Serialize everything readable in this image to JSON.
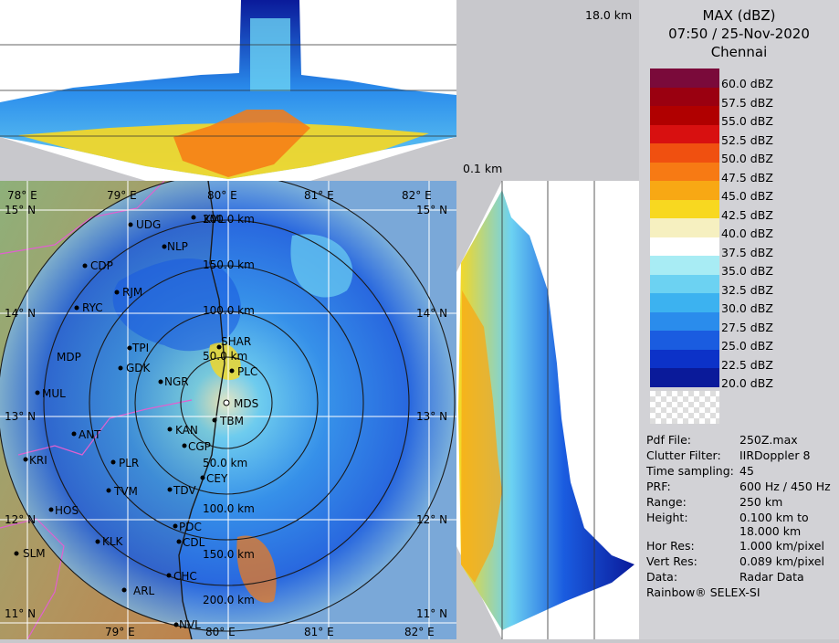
{
  "header": {
    "product": "MAX (dBZ)",
    "datetime": "07:50 / 25-Nov-2020",
    "station": "Chennai"
  },
  "profile": {
    "top_height": "18.0 km",
    "bottom_height": "0.1 km"
  },
  "colorbar": [
    {
      "label": "60.0 dBZ",
      "color": "#7a0a3a"
    },
    {
      "label": "57.5 dBZ",
      "color": "#9a0010"
    },
    {
      "label": "55.0 dBZ",
      "color": "#b00000"
    },
    {
      "label": "52.5 dBZ",
      "color": "#d81010"
    },
    {
      "label": "50.0 dBZ",
      "color": "#f05010"
    },
    {
      "label": "47.5 dBZ",
      "color": "#f77a14"
    },
    {
      "label": "45.0 dBZ",
      "color": "#f8a814"
    },
    {
      "label": "42.5 dBZ",
      "color": "#f8d820"
    },
    {
      "label": "40.0 dBZ",
      "color": "#f6f0c0"
    },
    {
      "label": "37.5 dBZ",
      "color": "#ffffff"
    },
    {
      "label": "35.0 dBZ",
      "color": "#a8ecf4"
    },
    {
      "label": "32.5 dBZ",
      "color": "#6cd2f2"
    },
    {
      "label": "30.0 dBZ",
      "color": "#3cb2f0"
    },
    {
      "label": "27.5 dBZ",
      "color": "#2a8cec"
    },
    {
      "label": "25.0 dBZ",
      "color": "#1a5ce0"
    },
    {
      "label": "22.5 dBZ",
      "color": "#0c32c8"
    },
    {
      "label": "20.0 dBZ",
      "color": "#0a1a9a"
    }
  ],
  "info": [
    {
      "label": "Pdf File:",
      "value": "250Z.max"
    },
    {
      "label": "Clutter Filter:",
      "value": "IIRDoppler 8"
    },
    {
      "label": "Time sampling:",
      "value": "45"
    },
    {
      "label": "PRF:",
      "value": "600 Hz / 450 Hz"
    },
    {
      "label": "Range:",
      "value": "250 km"
    },
    {
      "label": "Height:",
      "value": "0.100 km to 18.000 km"
    },
    {
      "label": "Hor Res:",
      "value": "1.000 km/pixel"
    },
    {
      "label": "Vert Res:",
      "value": "0.089 km/pixel"
    },
    {
      "label": "Data:",
      "value": "Radar Data"
    }
  ],
  "brand": "Rainbow® SELEX-SI",
  "map": {
    "lon_labels": [
      "78° E",
      "79° E",
      "80° E",
      "81° E",
      "82° E"
    ],
    "lat_labels": [
      "15° N",
      "14° N",
      "13° N",
      "12° N",
      "11° N"
    ],
    "range_rings": [
      "50.0 km",
      "100.0 km",
      "150.0 km",
      "200.0 km"
    ],
    "places": [
      {
        "name": "UDG"
      },
      {
        "name": "NLP"
      },
      {
        "name": "CDP"
      },
      {
        "name": "RJM"
      },
      {
        "name": "RYC"
      },
      {
        "name": "SHAR"
      },
      {
        "name": "TPI"
      },
      {
        "name": "MDP"
      },
      {
        "name": "GDK"
      },
      {
        "name": "NGR"
      },
      {
        "name": "PLC"
      },
      {
        "name": "MUL"
      },
      {
        "name": "MDS"
      },
      {
        "name": "TBM"
      },
      {
        "name": "KAN"
      },
      {
        "name": "ANT"
      },
      {
        "name": "CGP"
      },
      {
        "name": "KRI"
      },
      {
        "name": "PLR"
      },
      {
        "name": "CEY"
      },
      {
        "name": "TVM"
      },
      {
        "name": "TDV"
      },
      {
        "name": "HOS"
      },
      {
        "name": "PDC"
      },
      {
        "name": "SLM"
      },
      {
        "name": "KLK"
      },
      {
        "name": "CDL"
      },
      {
        "name": "CHC"
      },
      {
        "name": "ARL"
      },
      {
        "name": "NVL"
      },
      {
        "name": "KVL"
      }
    ]
  }
}
